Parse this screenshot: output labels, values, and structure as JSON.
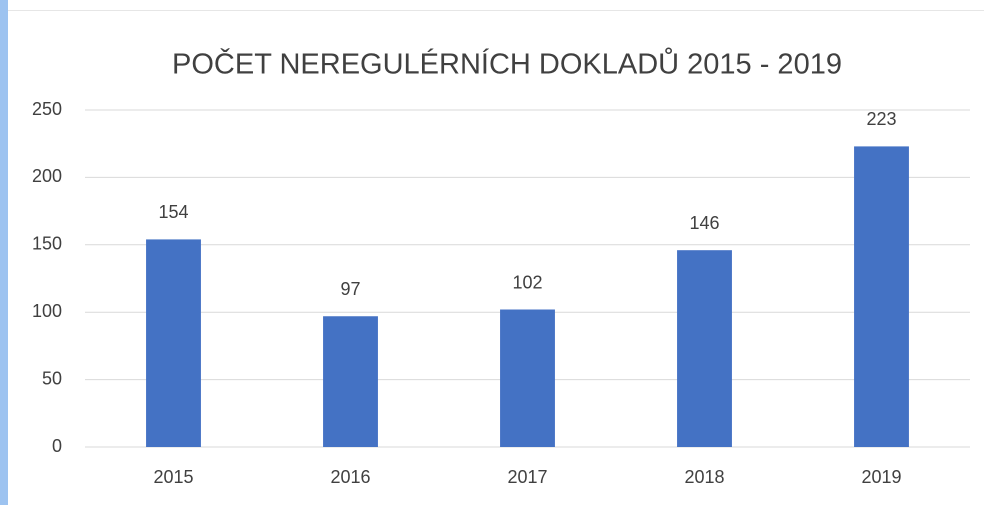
{
  "chart_data": {
    "type": "bar",
    "title": "POČET NEREGULÉRNÍCH DOKLADŮ 2015 - 2019",
    "categories": [
      "2015",
      "2016",
      "2017",
      "2018",
      "2019"
    ],
    "values": [
      154,
      97,
      102,
      146,
      223
    ],
    "color": "#4472c4",
    "ylim": [
      0,
      250
    ],
    "yticks": [
      0,
      50,
      100,
      150,
      200,
      250
    ],
    "grid": true
  }
}
